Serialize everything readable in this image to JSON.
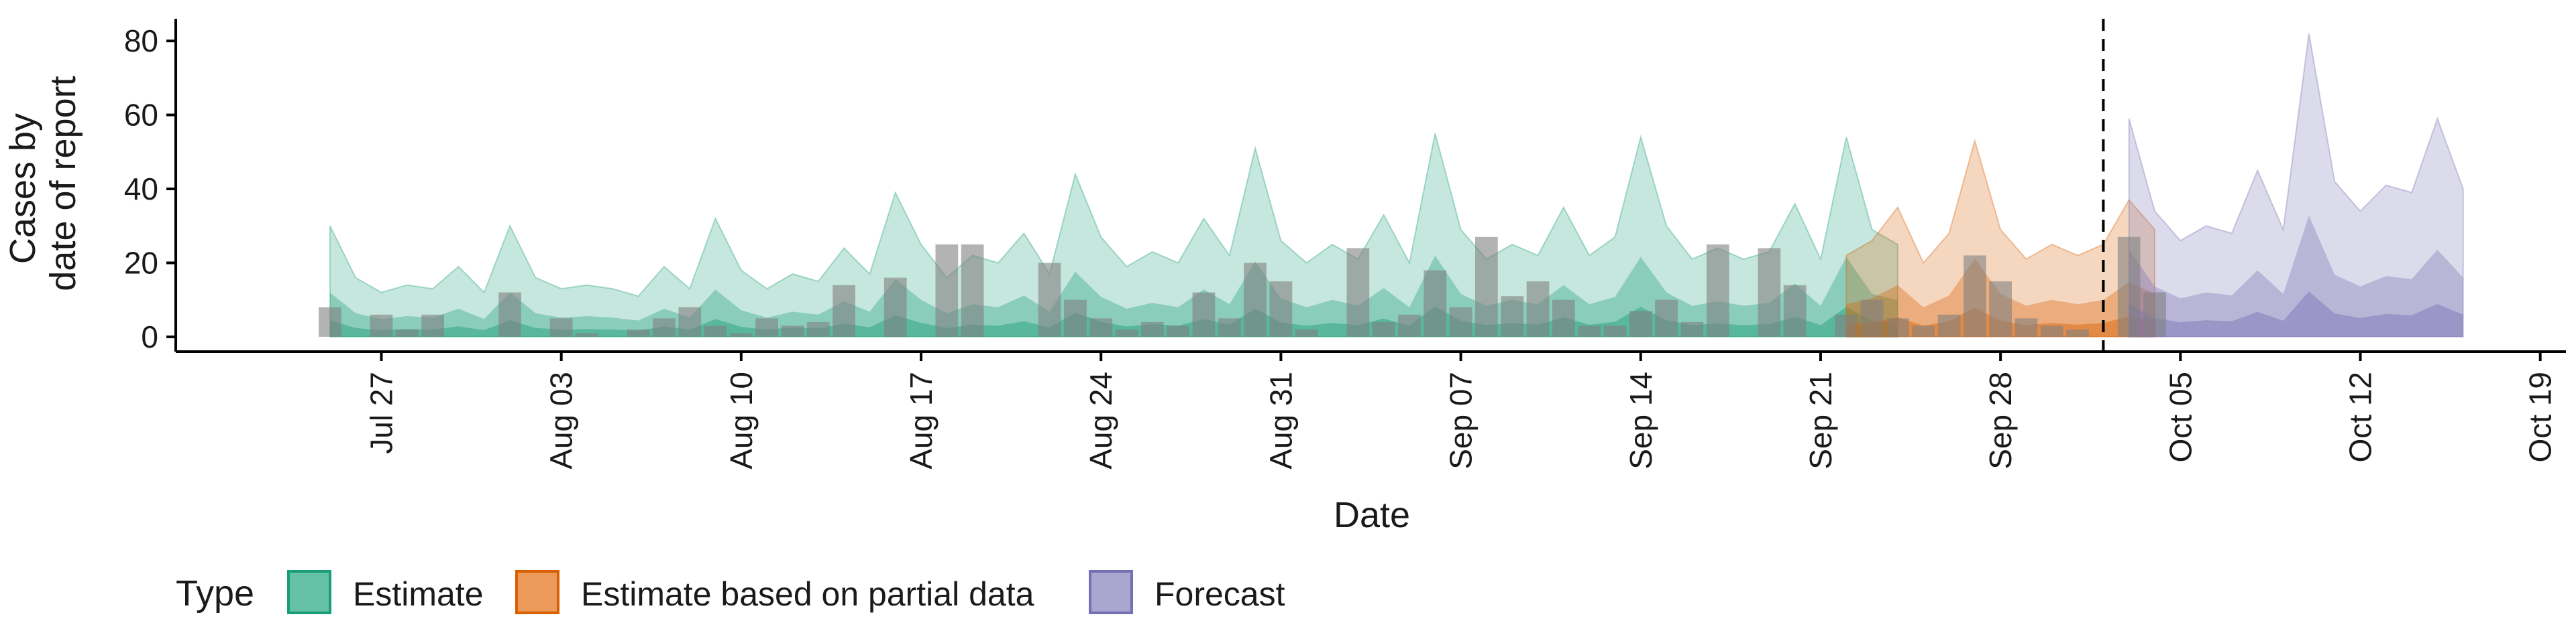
{
  "chart_data": {
    "type": "area",
    "xlabel": "Date",
    "ylabel": [
      "Cases by",
      "date of report"
    ],
    "ylim": [
      -4,
      86
    ],
    "yticks": [
      0,
      20,
      40,
      60,
      80
    ],
    "xlim": [
      "2020-07-19",
      "2020-10-20"
    ],
    "xticks": [
      {
        "date": "2020-07-27",
        "label": "Jul 27"
      },
      {
        "date": "2020-08-03",
        "label": "Aug 03"
      },
      {
        "date": "2020-08-10",
        "label": "Aug 10"
      },
      {
        "date": "2020-08-17",
        "label": "Aug 17"
      },
      {
        "date": "2020-08-24",
        "label": "Aug 24"
      },
      {
        "date": "2020-08-31",
        "label": "Aug 31"
      },
      {
        "date": "2020-09-07",
        "label": "Sep 07"
      },
      {
        "date": "2020-09-14",
        "label": "Sep 14"
      },
      {
        "date": "2020-09-21",
        "label": "Sep 21"
      },
      {
        "date": "2020-09-28",
        "label": "Sep 28"
      },
      {
        "date": "2020-10-05",
        "label": "Oct 05"
      },
      {
        "date": "2020-10-12",
        "label": "Oct 12"
      },
      {
        "date": "2020-10-19",
        "label": "Oct 19"
      }
    ],
    "forecast_start": "2020-10-02",
    "legend": {
      "title": "Type",
      "position": "bottom",
      "entries": [
        {
          "label": "Estimate",
          "fill": "#66c2a5",
          "stroke": "#1b9e77"
        },
        {
          "label": "Estimate based on partial data",
          "fill": "#ec9a5a",
          "stroke": "#d95f02"
        },
        {
          "label": "Forecast",
          "fill": "#a9a6d0",
          "stroke": "#7570b3"
        }
      ]
    },
    "colors": {
      "estimate": "#1b9e77",
      "partial": "#d95f02",
      "forecast": "#7570b3",
      "bars": "#808080",
      "axis": "#000000"
    },
    "reported_cases": {
      "start_date": "2020-07-25",
      "values": [
        8,
        0,
        6,
        2,
        6,
        0,
        0,
        12,
        0,
        5,
        1,
        0,
        2,
        5,
        8,
        3,
        1,
        5,
        3,
        4,
        14,
        0,
        16,
        0,
        25,
        25,
        0,
        0,
        20,
        10,
        5,
        2,
        4,
        3,
        12,
        5,
        20,
        15,
        2,
        0,
        24,
        4,
        6,
        18,
        8,
        27,
        11,
        15,
        10,
        3,
        3,
        7,
        10,
        4,
        25,
        0,
        24,
        14,
        0,
        6,
        10,
        5,
        3,
        6,
        22,
        15,
        5,
        3,
        2,
        0,
        27,
        12
      ]
    },
    "series": [
      {
        "name": "Estimate",
        "start_date": "2020-07-25",
        "upper": [
          30,
          16,
          12,
          14,
          13,
          19,
          12,
          30,
          16,
          13,
          14,
          13,
          11,
          19,
          13,
          32,
          18,
          13,
          17,
          15,
          24,
          17,
          39,
          25,
          16,
          22,
          20,
          28,
          17,
          44,
          27,
          19,
          23,
          20,
          32,
          22,
          51,
          26,
          20,
          25,
          21,
          33,
          20,
          55,
          29,
          21,
          25,
          22,
          35,
          22,
          27,
          54,
          30,
          21,
          24,
          21,
          23,
          36,
          21,
          54,
          29,
          25
        ]
      },
      {
        "name": "Estimate based on partial data",
        "start_date": "2020-09-22",
        "upper": [
          22,
          26,
          35,
          20,
          28,
          53,
          29,
          21,
          25,
          22,
          25,
          37,
          29
        ]
      },
      {
        "name": "Forecast",
        "start_date": "2020-10-03",
        "upper": [
          59,
          34,
          26,
          30,
          28,
          45,
          29,
          82,
          42,
          34,
          41,
          39,
          59,
          40
        ]
      }
    ]
  }
}
